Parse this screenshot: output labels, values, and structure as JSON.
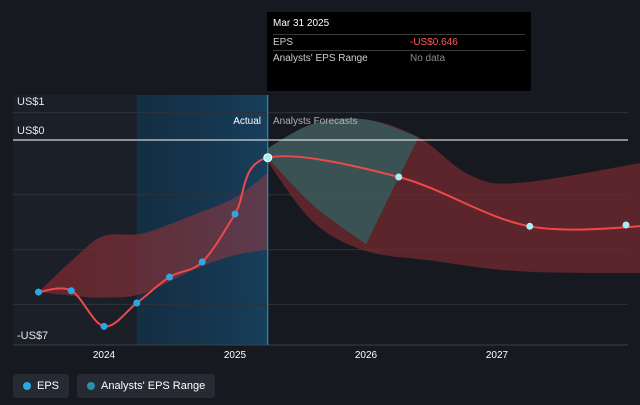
{
  "chart_data": {
    "type": "line",
    "x_tick_labels": [
      "2024",
      "2025",
      "2026",
      "2027"
    ],
    "y_tick_labels": {
      "top": "US$1",
      "zero": "US$0",
      "bottom": "-US$7"
    },
    "ylim": [
      -7,
      1
    ],
    "actual_label": "Actual",
    "forecast_label": "Analysts Forecasts",
    "eps_actual": [
      {
        "x": 2023.5,
        "y": -5.55
      },
      {
        "x": 2023.75,
        "y": -5.5
      },
      {
        "x": 2024.0,
        "y": -6.8
      },
      {
        "x": 2024.25,
        "y": -5.95
      },
      {
        "x": 2024.5,
        "y": -5.0
      },
      {
        "x": 2024.75,
        "y": -4.45
      },
      {
        "x": 2025.0,
        "y": -2.7
      },
      {
        "x": 2025.25,
        "y": -0.646
      }
    ],
    "eps_forecast": [
      {
        "x": 2025.25,
        "y": -0.646
      },
      {
        "x": 2026.25,
        "y": -1.35
      },
      {
        "x": 2027.25,
        "y": -3.15
      },
      {
        "x": 2028.25,
        "y": -3.1
      }
    ],
    "range_past_upper": [
      {
        "x": 2023.5,
        "y": -5.55
      },
      {
        "x": 2023.8,
        "y": -4.2
      },
      {
        "x": 2024.0,
        "y": -3.5
      },
      {
        "x": 2024.3,
        "y": -3.4
      },
      {
        "x": 2024.7,
        "y": -2.7
      },
      {
        "x": 2025.0,
        "y": -2.1
      },
      {
        "x": 2025.25,
        "y": -1.2
      }
    ],
    "range_past_lower": [
      {
        "x": 2023.5,
        "y": -5.55
      },
      {
        "x": 2023.8,
        "y": -5.7
      },
      {
        "x": 2024.0,
        "y": -5.75
      },
      {
        "x": 2024.3,
        "y": -5.6
      },
      {
        "x": 2024.7,
        "y": -4.7
      },
      {
        "x": 2025.0,
        "y": -4.2
      },
      {
        "x": 2025.25,
        "y": -4.0
      }
    ],
    "range_future_upper": [
      {
        "x": 2025.25,
        "y": -0.3
      },
      {
        "x": 2025.6,
        "y": 0.6
      },
      {
        "x": 2026.0,
        "y": 0.75
      },
      {
        "x": 2026.4,
        "y": 0.1
      },
      {
        "x": 2026.8,
        "y": -1.3
      },
      {
        "x": 2027.2,
        "y": -1.55
      },
      {
        "x": 2028.25,
        "y": -0.7
      }
    ],
    "range_future_lower": [
      {
        "x": 2025.25,
        "y": -0.8
      },
      {
        "x": 2025.6,
        "y": -3.0
      },
      {
        "x": 2026.0,
        "y": -4.05
      },
      {
        "x": 2026.5,
        "y": -4.4
      },
      {
        "x": 2027.2,
        "y": -4.8
      },
      {
        "x": 2028.25,
        "y": -4.85
      }
    ],
    "highlight_region": [
      2024.25,
      2025.25
    ]
  },
  "tooltip": {
    "date": "Mar 31 2025",
    "rows": [
      {
        "key": "EPS",
        "value": "-US$0.646"
      },
      {
        "key": "Analysts' EPS Range",
        "value": "No data"
      }
    ]
  },
  "legend": [
    {
      "label": "EPS",
      "color": "#2aa8e6"
    },
    {
      "label": "Analysts' EPS Range",
      "color": "#2a8fa8"
    }
  ],
  "colors": {
    "eps_line": "#f0484a",
    "range_red": "#7a2a30",
    "range_teal": "#2a6b6a",
    "highlight": "#15344c",
    "dot_actual": "#2aa8e6",
    "dot_forecast": "#a8f0f0"
  }
}
